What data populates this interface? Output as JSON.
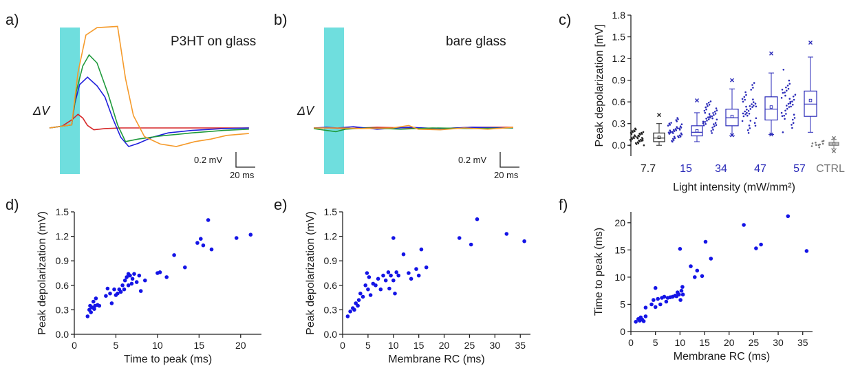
{
  "panels": {
    "a": {
      "label": "a)",
      "title": "P3HT on glass",
      "dv": "ΔV",
      "scale_v": "0.2 mV",
      "scale_t": "20 ms"
    },
    "b": {
      "label": "b)",
      "title": "bare glass",
      "dv": "ΔV",
      "scale_v": "0.2 mV",
      "scale_t": "20 ms"
    },
    "c": {
      "label": "c)"
    },
    "d": {
      "label": "d)"
    },
    "e": {
      "label": "e)"
    },
    "f": {
      "label": "f)"
    }
  },
  "colors": {
    "light": "#6fdede",
    "red": "#d62728",
    "blue": "#1f1fdc",
    "green": "#1f9a3c",
    "orange": "#f59a2a",
    "dots": "#1414e6",
    "box_blue": "#2a2ab8",
    "black": "#222222",
    "ctrl": "#777777"
  },
  "chart_data": [
    {
      "id": "c",
      "type": "box",
      "ylabel": "Peak depolarization [mV]",
      "xlabel": "Light intensity (mW/mm²)",
      "ylim": [
        -0.15,
        1.8
      ],
      "yticks": [
        0.0,
        0.3,
        0.6,
        0.9,
        1.2,
        1.5,
        1.8
      ],
      "yticklabels": [
        "0.0",
        "0.3",
        "0.6",
        "0.9",
        "1.2",
        "1.5",
        "1.8"
      ],
      "categories": [
        "7.7",
        "15",
        "34",
        "47",
        "57",
        "CTRL"
      ],
      "groups": [
        {
          "name": "7.7",
          "min": 0.0,
          "q1": 0.05,
          "median": 0.1,
          "q3": 0.17,
          "max": 0.3,
          "mean": 0.11,
          "outliers": [
            0.42
          ]
        },
        {
          "name": "15",
          "min": 0.05,
          "q1": 0.13,
          "median": 0.18,
          "q3": 0.27,
          "max": 0.45,
          "mean": 0.2,
          "outliers": [
            0.62
          ]
        },
        {
          "name": "34",
          "min": 0.13,
          "q1": 0.27,
          "median": 0.38,
          "q3": 0.5,
          "max": 0.78,
          "mean": 0.4,
          "outliers": [
            0.14,
            0.9
          ]
        },
        {
          "name": "47",
          "min": 0.15,
          "q1": 0.35,
          "median": 0.5,
          "q3": 0.67,
          "max": 1.0,
          "mean": 0.53,
          "outliers": [
            0.15,
            1.27
          ]
        },
        {
          "name": "57",
          "min": 0.18,
          "q1": 0.4,
          "median": 0.57,
          "q3": 0.75,
          "max": 1.22,
          "mean": 0.62,
          "outliers": [
            1.42
          ]
        },
        {
          "name": "CTRL",
          "min": -0.05,
          "q1": 0.0,
          "median": 0.02,
          "q3": 0.04,
          "max": 0.08,
          "mean": 0.02,
          "outliers": [
            -0.08,
            0.1
          ]
        }
      ]
    },
    {
      "id": "d",
      "type": "scatter",
      "xlabel": "Time to peak (ms)",
      "ylabel": "Peak depolarization (mV)",
      "xlim": [
        0,
        22.5
      ],
      "ylim": [
        0,
        1.5
      ],
      "xticks": [
        0,
        5,
        10,
        15,
        20
      ],
      "yticks": [
        0.0,
        0.3,
        0.6,
        0.9,
        1.2,
        1.5
      ],
      "yticklabels": [
        "0.0",
        "0.3",
        "0.6",
        "0.9",
        "1.2",
        "1.5"
      ],
      "points": [
        [
          1.6,
          0.22
        ],
        [
          1.8,
          0.3
        ],
        [
          1.9,
          0.35
        ],
        [
          2.0,
          0.27
        ],
        [
          2.1,
          0.33
        ],
        [
          2.3,
          0.4
        ],
        [
          2.4,
          0.31
        ],
        [
          2.5,
          0.35
        ],
        [
          2.6,
          0.44
        ],
        [
          2.8,
          0.36
        ],
        [
          3.0,
          0.35
        ],
        [
          3.8,
          0.47
        ],
        [
          4.0,
          0.56
        ],
        [
          4.3,
          0.5
        ],
        [
          4.5,
          0.38
        ],
        [
          4.8,
          0.55
        ],
        [
          5.0,
          0.48
        ],
        [
          5.2,
          0.5
        ],
        [
          5.4,
          0.55
        ],
        [
          5.6,
          0.52
        ],
        [
          5.8,
          0.6
        ],
        [
          6.0,
          0.55
        ],
        [
          6.1,
          0.66
        ],
        [
          6.3,
          0.7
        ],
        [
          6.5,
          0.6
        ],
        [
          6.5,
          0.74
        ],
        [
          6.7,
          0.72
        ],
        [
          6.9,
          0.62
        ],
        [
          7.0,
          0.68
        ],
        [
          7.2,
          0.74
        ],
        [
          7.5,
          0.64
        ],
        [
          7.8,
          0.72
        ],
        [
          8.0,
          0.53
        ],
        [
          8.5,
          0.66
        ],
        [
          10.0,
          0.75
        ],
        [
          10.3,
          0.76
        ],
        [
          11.1,
          0.7
        ],
        [
          12.0,
          0.97
        ],
        [
          13.3,
          0.82
        ],
        [
          14.8,
          1.12
        ],
        [
          15.2,
          1.17
        ],
        [
          15.5,
          1.09
        ],
        [
          16.1,
          1.4
        ],
        [
          16.5,
          1.04
        ],
        [
          19.5,
          1.18
        ],
        [
          21.2,
          1.22
        ]
      ]
    },
    {
      "id": "e",
      "type": "scatter",
      "xlabel": "Membrane RC (ms)",
      "ylabel": "Peak depolarization (mV)",
      "xlim": [
        0,
        37
      ],
      "ylim": [
        0,
        1.5
      ],
      "xticks": [
        0,
        5,
        10,
        15,
        20,
        25,
        30,
        35
      ],
      "yticks": [
        0.0,
        0.3,
        0.6,
        0.9,
        1.2,
        1.5
      ],
      "yticklabels": [
        "0.0",
        "0.3",
        "0.6",
        "0.9",
        "1.2",
        "1.5"
      ],
      "points": [
        [
          1.0,
          0.22
        ],
        [
          1.5,
          0.28
        ],
        [
          2.0,
          0.32
        ],
        [
          2.3,
          0.3
        ],
        [
          2.6,
          0.38
        ],
        [
          3.0,
          0.35
        ],
        [
          3.2,
          0.42
        ],
        [
          3.5,
          0.5
        ],
        [
          4.0,
          0.46
        ],
        [
          4.5,
          0.6
        ],
        [
          4.8,
          0.75
        ],
        [
          5.0,
          0.55
        ],
        [
          5.2,
          0.7
        ],
        [
          5.5,
          0.48
        ],
        [
          6.0,
          0.62
        ],
        [
          6.5,
          0.6
        ],
        [
          7.0,
          0.68
        ],
        [
          7.5,
          0.55
        ],
        [
          8.0,
          0.72
        ],
        [
          8.5,
          0.66
        ],
        [
          9.0,
          0.76
        ],
        [
          9.2,
          0.56
        ],
        [
          9.5,
          0.72
        ],
        [
          10.0,
          0.66
        ],
        [
          10.0,
          1.18
        ],
        [
          10.3,
          0.5
        ],
        [
          10.6,
          0.76
        ],
        [
          11.0,
          0.72
        ],
        [
          12.0,
          0.98
        ],
        [
          13.0,
          0.75
        ],
        [
          13.5,
          0.68
        ],
        [
          14.5,
          0.8
        ],
        [
          15.0,
          0.72
        ],
        [
          15.5,
          1.04
        ],
        [
          16.5,
          0.82
        ],
        [
          23.0,
          1.18
        ],
        [
          25.3,
          1.1
        ],
        [
          26.5,
          1.41
        ],
        [
          32.3,
          1.23
        ],
        [
          35.8,
          1.14
        ]
      ]
    },
    {
      "id": "f",
      "type": "scatter",
      "xlabel": "Membrane RC (ms)",
      "ylabel": "Time to peak (ms)",
      "xlim": [
        0,
        37
      ],
      "ylim": [
        0,
        22
      ],
      "xticks": [
        0,
        5,
        10,
        15,
        20,
        25,
        30,
        35
      ],
      "yticks": [
        0,
        5,
        10,
        15,
        20
      ],
      "yticklabels": [
        "0",
        "5",
        "10",
        "15",
        "20"
      ],
      "points": [
        [
          1.0,
          1.8
        ],
        [
          1.5,
          2.3
        ],
        [
          1.8,
          2.0
        ],
        [
          2.0,
          2.6
        ],
        [
          2.3,
          2.2
        ],
        [
          2.6,
          1.9
        ],
        [
          3.0,
          4.4
        ],
        [
          3.0,
          2.8
        ],
        [
          4.2,
          5.0
        ],
        [
          4.6,
          5.8
        ],
        [
          5.0,
          8.0
        ],
        [
          5.0,
          4.5
        ],
        [
          5.5,
          6.0
        ],
        [
          6.0,
          5.0
        ],
        [
          6.3,
          6.2
        ],
        [
          6.8,
          6.4
        ],
        [
          7.2,
          5.5
        ],
        [
          7.5,
          6.2
        ],
        [
          8.0,
          6.3
        ],
        [
          8.5,
          6.4
        ],
        [
          9.0,
          6.6
        ],
        [
          9.3,
          6.5
        ],
        [
          9.5,
          7.2
        ],
        [
          9.8,
          6.8
        ],
        [
          10.0,
          15.2
        ],
        [
          10.1,
          5.8
        ],
        [
          10.3,
          7.5
        ],
        [
          10.5,
          8.2
        ],
        [
          10.6,
          6.8
        ],
        [
          12.2,
          12.0
        ],
        [
          13.0,
          10.0
        ],
        [
          13.5,
          11.2
        ],
        [
          14.5,
          10.2
        ],
        [
          15.2,
          16.5
        ],
        [
          16.3,
          13.4
        ],
        [
          23.0,
          19.6
        ],
        [
          25.5,
          15.3
        ],
        [
          26.5,
          16.0
        ],
        [
          32.0,
          21.2
        ],
        [
          35.8,
          14.8
        ]
      ]
    }
  ],
  "traces": {
    "a": {
      "red": [
        [
          0,
          0
        ],
        [
          8,
          0.03
        ],
        [
          14,
          0.13
        ],
        [
          18,
          0.22
        ],
        [
          21,
          0.16
        ],
        [
          24,
          0.04
        ],
        [
          28,
          -0.03
        ],
        [
          35,
          -0.01
        ],
        [
          45,
          0
        ],
        [
          60,
          0
        ],
        [
          80,
          0
        ],
        [
          100,
          0
        ],
        [
          126,
          0
        ]
      ],
      "blue": [
        [
          0,
          0
        ],
        [
          14,
          0.05
        ],
        [
          16,
          0.4
        ],
        [
          19,
          0.7
        ],
        [
          24,
          0.82
        ],
        [
          30,
          0.68
        ],
        [
          35,
          0.5
        ],
        [
          40,
          0.15
        ],
        [
          45,
          -0.15
        ],
        [
          50,
          -0.3
        ],
        [
          56,
          -0.25
        ],
        [
          65,
          -0.15
        ],
        [
          75,
          -0.08
        ],
        [
          90,
          -0.04
        ],
        [
          110,
          -0.01
        ],
        [
          126,
          0
        ]
      ],
      "green": [
        [
          0,
          0
        ],
        [
          14,
          0.05
        ],
        [
          17,
          0.6
        ],
        [
          21,
          1.0
        ],
        [
          25,
          1.18
        ],
        [
          30,
          1.05
        ],
        [
          37,
          0.55
        ],
        [
          43,
          0.05
        ],
        [
          48,
          -0.22
        ],
        [
          56,
          -0.18
        ],
        [
          70,
          -0.13
        ],
        [
          90,
          -0.08
        ],
        [
          110,
          -0.04
        ],
        [
          126,
          -0.02
        ]
      ],
      "orange": [
        [
          0,
          0
        ],
        [
          14,
          0.05
        ],
        [
          18,
          0.9
        ],
        [
          23,
          1.5
        ],
        [
          30,
          1.62
        ],
        [
          43,
          1.64
        ],
        [
          48,
          0.8
        ],
        [
          53,
          0.2
        ],
        [
          60,
          -0.14
        ],
        [
          70,
          -0.26
        ],
        [
          80,
          -0.3
        ],
        [
          92,
          -0.22
        ],
        [
          102,
          -0.18
        ],
        [
          112,
          -0.12
        ],
        [
          126,
          -0.09
        ]
      ]
    },
    "b": {
      "blue": [
        [
          0,
          0
        ],
        [
          8,
          0.01
        ],
        [
          15,
          0
        ],
        [
          25,
          0.02
        ],
        [
          40,
          -0.02
        ],
        [
          60,
          0.01
        ],
        [
          80,
          -0.01
        ],
        [
          100,
          0.01
        ],
        [
          126,
          0
        ]
      ],
      "red": [
        [
          0,
          0
        ],
        [
          10,
          0
        ],
        [
          20,
          -0.01
        ],
        [
          40,
          0.01
        ],
        [
          60,
          0
        ],
        [
          80,
          -0.01
        ],
        [
          100,
          0.01
        ],
        [
          126,
          0.01
        ]
      ],
      "green": [
        [
          0,
          -0.01
        ],
        [
          8,
          -0.04
        ],
        [
          14,
          -0.06
        ],
        [
          20,
          -0.02
        ],
        [
          35,
          0
        ],
        [
          55,
          -0.02
        ],
        [
          75,
          0
        ],
        [
          100,
          -0.01
        ],
        [
          126,
          0
        ]
      ],
      "orange": [
        [
          0,
          0
        ],
        [
          15,
          0
        ],
        [
          30,
          -0.01
        ],
        [
          50,
          0
        ],
        [
          60,
          0.04
        ],
        [
          66,
          -0.02
        ],
        [
          80,
          -0.03
        ],
        [
          95,
          0
        ],
        [
          110,
          -0.02
        ],
        [
          126,
          0.01
        ]
      ]
    }
  }
}
